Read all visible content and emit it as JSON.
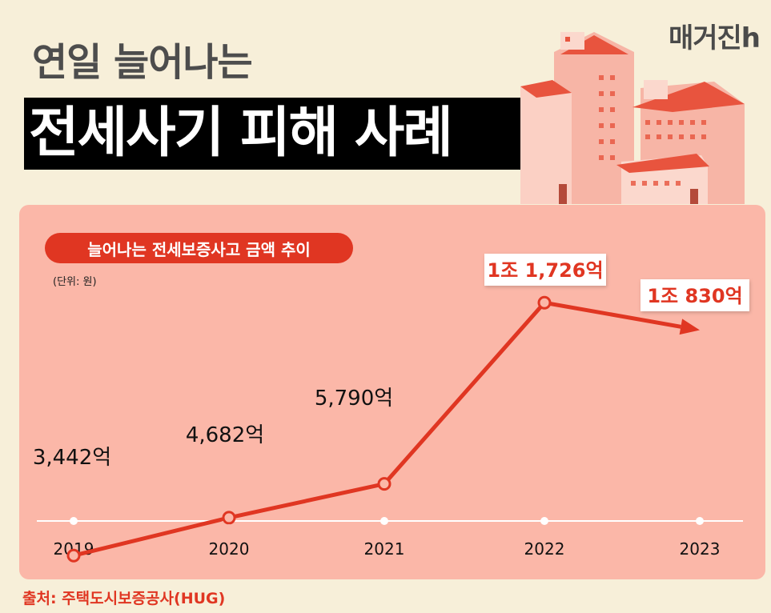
{
  "brand": "매거진h",
  "title_line1": "연일 늘어나는",
  "title_line2": "전세사기 피해 사례",
  "colors": {
    "background": "#f7efd9",
    "panel": "#fbb7a8",
    "accent": "#e03622",
    "label_box": "#ffffff"
  },
  "chart_data": {
    "type": "line",
    "title": "늘어나는 전세보증사고 금액 추이",
    "unit_label": "(단위: 원)",
    "categories": [
      "2019",
      "2020",
      "2021",
      "2022",
      "2023"
    ],
    "values": [
      3442,
      4682,
      5790,
      11726,
      10830
    ],
    "value_labels": [
      "3,442억",
      "4,682억",
      "5,790억",
      "1조 1,726억",
      "1조 830억"
    ],
    "value_unit": "억원",
    "last_point_arrow": true,
    "grid": false,
    "legend": "none"
  },
  "source": "출처: 주택도시보증공사(HUG)"
}
